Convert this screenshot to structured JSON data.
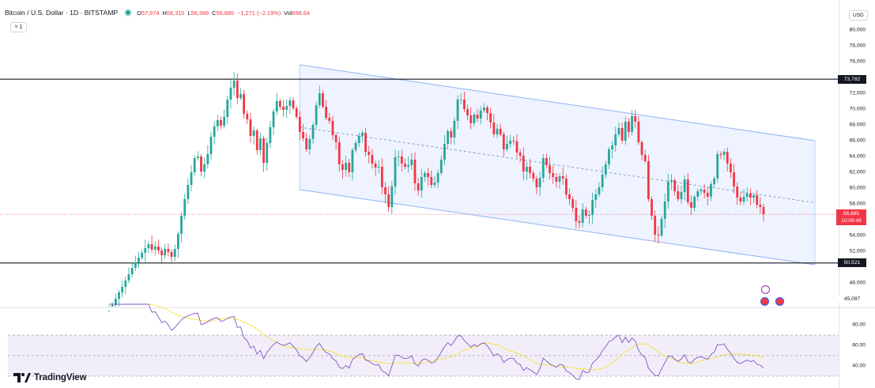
{
  "header": {
    "symbol_title": "Bitcoin / U.S. Dollar · 1D · BITSTAMP",
    "ohlc": [
      {
        "key": "O",
        "value": "57,974"
      },
      {
        "key": "H",
        "value": "58,315"
      },
      {
        "key": "L",
        "value": "56,388"
      },
      {
        "key": "C",
        "value": "56,685"
      },
      {
        "key": "",
        "value": "−1,271 (−2.19%)"
      },
      {
        "key": "Vol",
        "value": "698.64"
      }
    ],
    "collapse_label": "˅ 1"
  },
  "currency_button": "USD",
  "price_axis": {
    "ticks": [
      "80,000",
      "78,000",
      "76,000",
      "72,000",
      "70,000",
      "68,000",
      "66,000",
      "64,000",
      "62,000",
      "60,000",
      "58,000",
      "54,000",
      "52,000",
      "48,000",
      "46,000"
    ],
    "tick_values": [
      80000,
      78000,
      76000,
      72000,
      70000,
      68000,
      66000,
      64000,
      62000,
      60000,
      58000,
      54000,
      52000,
      48000,
      46000
    ],
    "level_high_label": "73,782",
    "level_high_value": 73782,
    "level_low_label": "50,521",
    "level_low_value": 50521,
    "last_price_label": "56,685",
    "last_price_value": 56685,
    "countdown": "10:09:49",
    "pane_low_label": "45,097"
  },
  "rsi_axis": {
    "ticks": [
      "80.00",
      "60.00",
      "40.00"
    ],
    "tick_values": [
      80,
      60,
      40
    ]
  },
  "logo_text": "TradingView",
  "colors": {
    "up": "#26a69a",
    "down": "#f23645",
    "channel_fill": "#2962ff",
    "channel_line": "#8fb3f5",
    "rsi_line": "#7e57c2",
    "rsi_ma": "#f7e13c"
  },
  "chart_data": {
    "type": "candlestick",
    "timeframe": "1D",
    "last_close": 56685,
    "ylim": [
      45097,
      81000
    ],
    "horizontal_levels": [
      73782,
      50521
    ],
    "closes": [
      44500,
      45200,
      46000,
      46800,
      47500,
      48300,
      49100,
      49900,
      50600,
      51200,
      51800,
      52400,
      52900,
      52200,
      52600,
      52100,
      51500,
      52300,
      51900,
      51300,
      52300,
      54200,
      56500,
      58600,
      60400,
      62000,
      63800,
      64000,
      62100,
      63000,
      64300,
      66500,
      67800,
      68600,
      67900,
      69000,
      71200,
      72700,
      73600,
      71400,
      71900,
      69400,
      68700,
      66600,
      67300,
      64800,
      66300,
      63200,
      65700,
      67700,
      69700,
      71000,
      70300,
      69900,
      70400,
      71100,
      70100,
      69000,
      67100,
      66300,
      64900,
      66200,
      68000,
      70500,
      72000,
      70300,
      68900,
      68500,
      66700,
      65800,
      63000,
      62300,
      63200,
      62000,
      64800,
      65700,
      66600,
      67000,
      64600,
      64200,
      63100,
      62600,
      62700,
      60100,
      59200,
      57600,
      60200,
      63900,
      64000,
      63100,
      62700,
      62900,
      63600,
      60600,
      59700,
      61400,
      61900,
      61400,
      60400,
      60700,
      61900,
      63600,
      65600,
      67200,
      66400,
      68500,
      71200,
      71200,
      70000,
      69200,
      68200,
      69300,
      68800,
      69800,
      70200,
      69500,
      68300,
      66800,
      67500,
      66800,
      64900,
      65600,
      66000,
      65900,
      64500,
      64100,
      62100,
      62700,
      61900,
      61200,
      60100,
      61300,
      63800,
      62900,
      61900,
      61400,
      60800,
      61500,
      61200,
      59200,
      58600,
      57500,
      55800,
      55600,
      57300,
      56500,
      56600,
      58500,
      59200,
      60100,
      61700,
      63000,
      64900,
      65400,
      66800,
      67600,
      66000,
      68400,
      67100,
      69100,
      68400,
      65800,
      64200,
      63400,
      58600,
      56500,
      54100,
      54000,
      56100,
      58300,
      60800,
      61000,
      59600,
      58600,
      59500,
      61100,
      58200,
      57500,
      58900,
      59600,
      59800,
      59400,
      58900,
      60500,
      61200,
      64300,
      64200,
      64600,
      63100,
      62000,
      60200,
      58800,
      58300,
      58900,
      59300,
      58800,
      59100,
      57900,
      57600,
      56685
    ],
    "channel": {
      "upper_start": 75600,
      "upper_end": 66000,
      "lower_start": 59800,
      "lower_end": 50300
    },
    "indicator": {
      "name": "RSI",
      "levels": [
        70,
        50,
        30
      ]
    },
    "rsi_labels": [
      "80.00",
      "60.00",
      "40.00"
    ]
  }
}
